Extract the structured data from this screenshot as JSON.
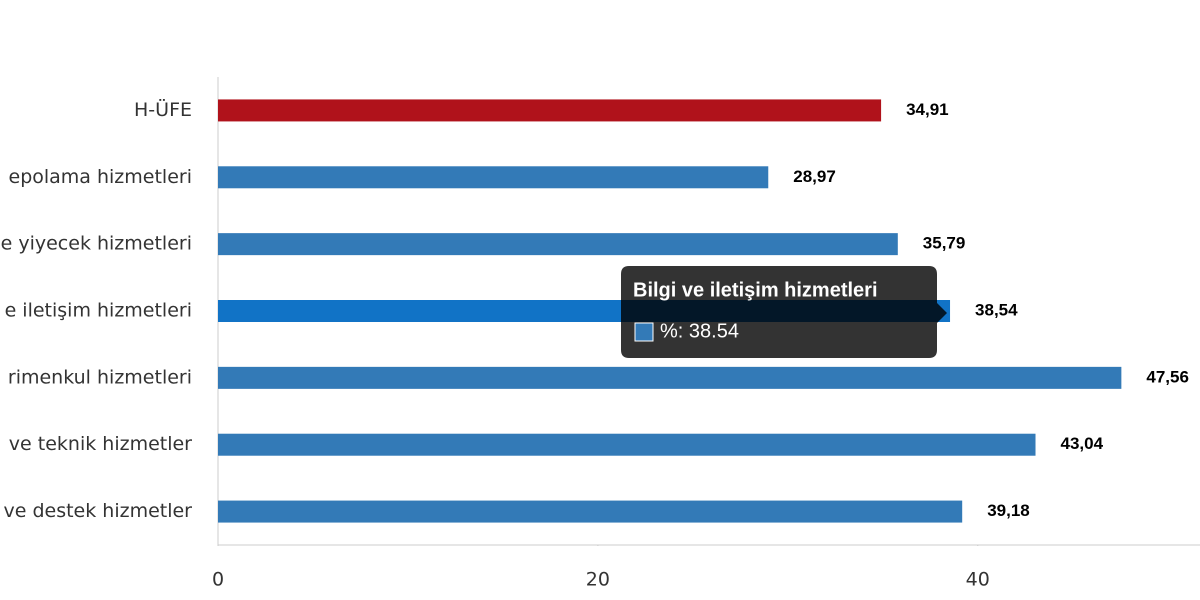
{
  "chart_data": {
    "type": "hbar",
    "categories": [
      "H-ÜFE",
      "epolama hizmetleri",
      "e yiyecek hizmetleri",
      "e iletişim hizmetleri",
      "rimenkul hizmetleri",
      "ve teknik hizmetler",
      "ve destek hizmetler"
    ],
    "values": [
      34.91,
      28.97,
      35.79,
      38.54,
      47.56,
      43.04,
      39.18
    ],
    "value_labels": [
      "34,91",
      "28,97",
      "35,79",
      "38,54",
      "47,56",
      "43,04",
      "39,18"
    ],
    "colors": [
      "#b0121b",
      "#337ab7",
      "#337ab7",
      "#1173c6",
      "#337ab7",
      "#337ab7",
      "#337ab7"
    ],
    "xlim": [
      0,
      51.7
    ],
    "xticks": [
      0,
      20,
      40
    ],
    "tooltip": {
      "title": "Bilgi ve iletişim hizmetleri",
      "text": "%: 38.54",
      "color": "#337ab7"
    }
  }
}
